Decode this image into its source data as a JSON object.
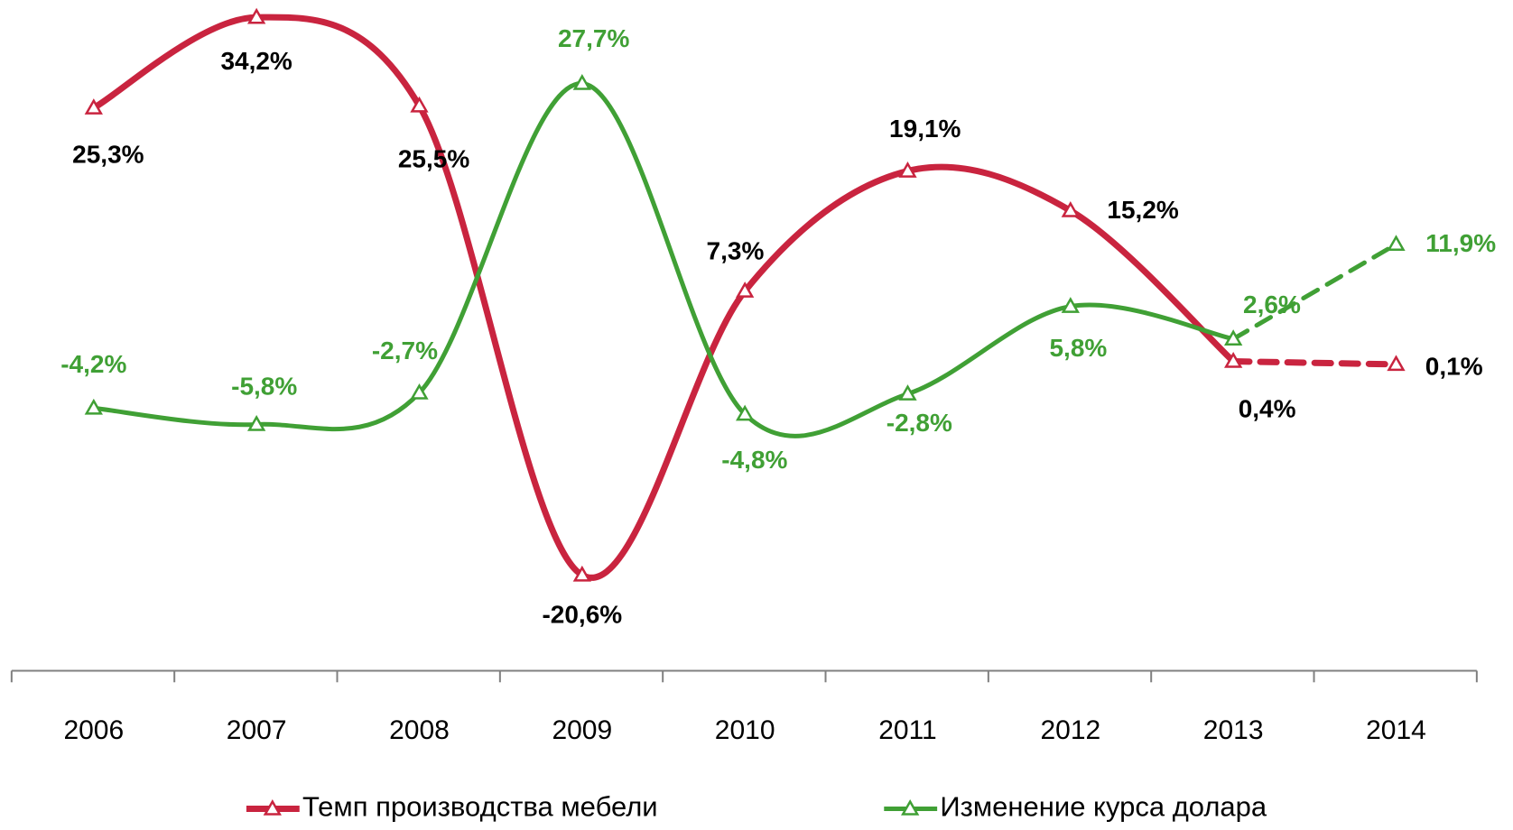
{
  "chart_data": {
    "type": "line",
    "categories": [
      "2006",
      "2007",
      "2008",
      "2009",
      "2010",
      "2011",
      "2012",
      "2013",
      "2014"
    ],
    "series": [
      {
        "name": "Темп производства мебели",
        "color": "#c9243f",
        "label_color": "#000000",
        "values": [
          25.3,
          34.2,
          25.5,
          -20.6,
          7.3,
          19.1,
          15.2,
          0.4,
          0.1
        ],
        "value_labels": [
          "25,3%",
          "34,2%",
          "25,5%",
          "-20,6%",
          "7,3%",
          "19,1%",
          "15,2%",
          "0,4%",
          "0,1%"
        ]
      },
      {
        "name": "Изменение курса долара",
        "color": "#40a035",
        "label_color": "#40a035",
        "values": [
          -4.2,
          -5.8,
          -2.7,
          27.7,
          -4.8,
          -2.8,
          5.8,
          2.6,
          11.9
        ],
        "value_labels": [
          "-4,2%",
          "-5,8%",
          "-2,7%",
          "27,7%",
          "-4,8%",
          "-2,8%",
          "5,8%",
          "2,6%",
          "11,9%"
        ]
      }
    ],
    "ylim": [
      -30,
      40
    ],
    "dashed_from_index": 7,
    "smooth": true,
    "legend": "bottom",
    "grid": false
  }
}
